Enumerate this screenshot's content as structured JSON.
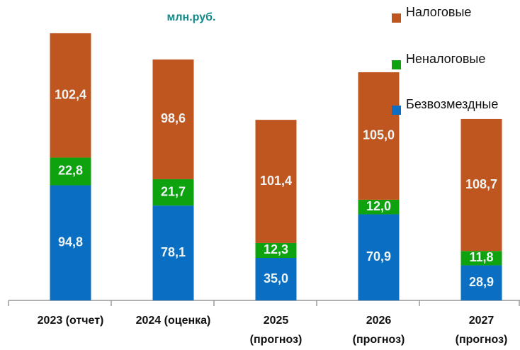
{
  "chart_data": {
    "type": "stacked_bar",
    "title": "млн.руб.",
    "categories": [
      "2023 (отчет)",
      "2024 (оценка)",
      "2025\n(прогноз)",
      "2026\n(прогноз)",
      "2027\n(прогноз)"
    ],
    "series": [
      {
        "name": "Безвозмездные",
        "color": "#0a6fc2",
        "values": [
          94.8,
          78.1,
          35.0,
          70.9,
          28.9
        ],
        "value_labels": [
          "94,8",
          "78,1",
          "35,0",
          "70,9",
          "28,9"
        ]
      },
      {
        "name": "Неналоговые",
        "color": "#0ea30e",
        "values": [
          22.8,
          21.7,
          12.3,
          12.0,
          11.8
        ],
        "value_labels": [
          "22,8",
          "21,7",
          "12,3",
          "12,0",
          "11,8"
        ]
      },
      {
        "name": "Налоговые",
        "color": "#c0561f",
        "values": [
          102.4,
          98.6,
          101.4,
          105.0,
          108.7
        ],
        "value_labels": [
          "102,4",
          "98,6",
          "101,4",
          "105,0",
          "108,7"
        ]
      }
    ]
  }
}
